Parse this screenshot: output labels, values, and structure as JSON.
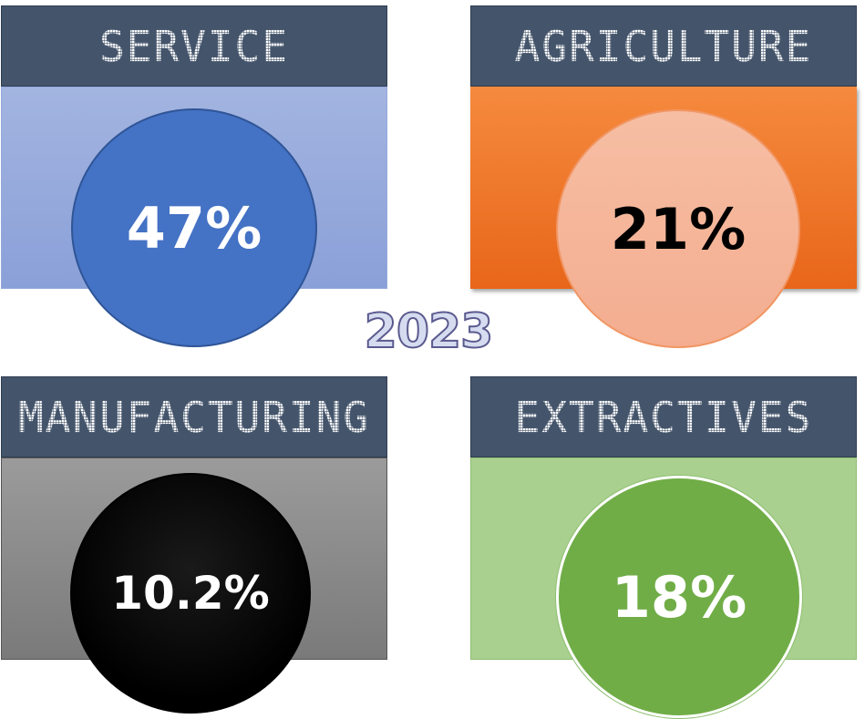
{
  "year": "2023",
  "tiles": [
    {
      "label": "SERVICE",
      "value": "47%",
      "panel_color": "#8ea5dc",
      "circle_color": "#4472c4",
      "text_color": "#ffffff"
    },
    {
      "label": "AGRICULTURE",
      "value": "21%",
      "panel_color": "#ee7427",
      "circle_color": "#f4b39a",
      "text_color": "#000000"
    },
    {
      "label": "MANUFACTURING",
      "value": "10.2%",
      "panel_color": "#8c8c8c",
      "circle_color": "#000000",
      "text_color": "#ffffff"
    },
    {
      "label": "EXTRACTIVES",
      "value": "18%",
      "panel_color": "#a9d08e",
      "circle_color": "#70ad47",
      "text_color": "#ffffff"
    }
  ]
}
